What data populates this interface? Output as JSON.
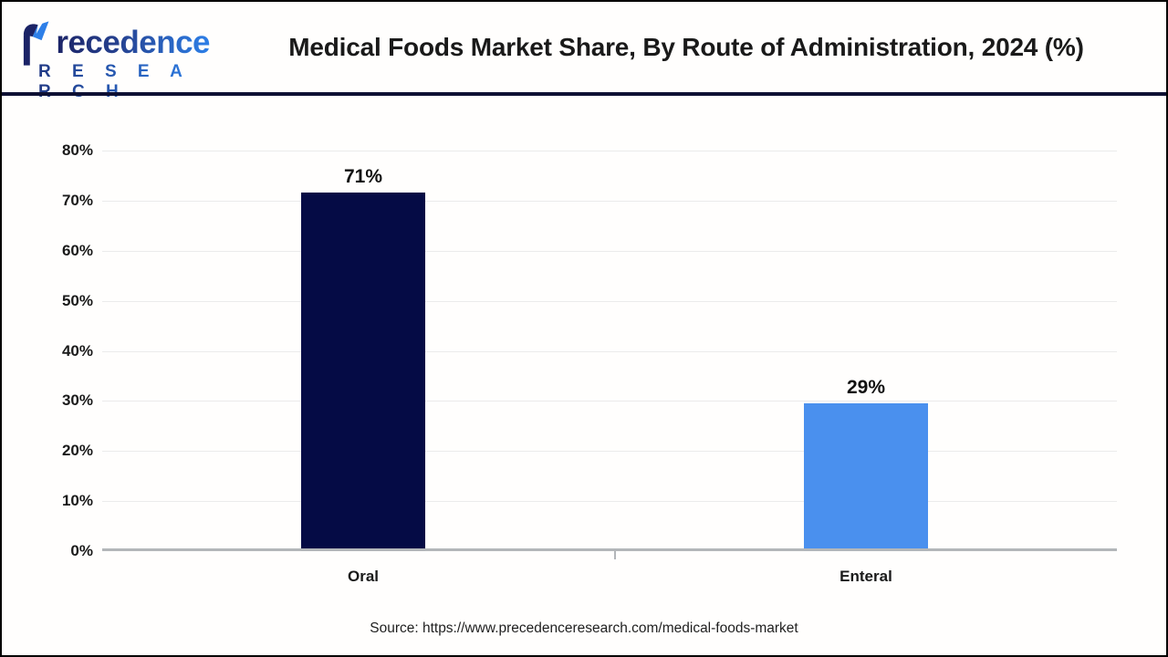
{
  "header": {
    "logo": {
      "brand": "Precedence",
      "brand_rest": "recedence",
      "sub": "R E S E A R C H"
    },
    "title": "Medical Foods Market Share, By Route of Administration, 2024 (%)"
  },
  "chart_data": {
    "type": "bar",
    "title": "Medical Foods Market Share, By Route of Administration, 2024 (%)",
    "categories": [
      "Oral",
      "Enteral"
    ],
    "values": [
      71,
      29
    ],
    "value_labels": [
      "71%",
      "29%"
    ],
    "bar_colors": [
      "#050b45",
      "#4a90ee"
    ],
    "xlabel": "",
    "ylabel": "",
    "ylim": [
      0,
      80
    ],
    "yticks": [
      0,
      10,
      20,
      30,
      40,
      50,
      60,
      70,
      80
    ],
    "ytick_labels": [
      "0%",
      "10%",
      "20%",
      "30%",
      "40%",
      "50%",
      "60%",
      "70%",
      "80%"
    ],
    "grid": true,
    "legend_position": "none"
  },
  "footer": {
    "source": "Source: https://www.precedenceresearch.com/medical-foods-market"
  },
  "colors": {
    "bar_oral": "#050b45",
    "bar_enteral": "#4a90ee",
    "gridline": "#ebebeb",
    "axis": "#b3b6b9",
    "header_divider": "#0e1033",
    "logo_dark": "#1b2366",
    "logo_blue": "#2d7fe8",
    "text": "#1a1a1a"
  }
}
